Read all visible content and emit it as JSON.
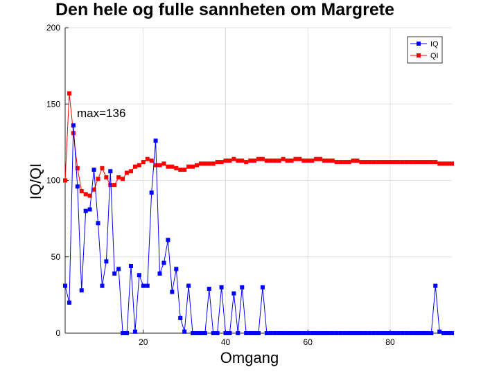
{
  "chart_data": {
    "type": "line",
    "title": "Den hele og fulle sannheten om Margrete",
    "xlabel": "Omgang",
    "ylabel": "IQ/QI",
    "xlim": [
      1,
      95
    ],
    "ylim": [
      0,
      200
    ],
    "xticks": [
      20,
      40,
      60,
      80
    ],
    "yticks": [
      0,
      50,
      100,
      150,
      200
    ],
    "grid": true,
    "legend_position": "top-right",
    "annotation": "max=136",
    "series": [
      {
        "name": "IQ",
        "color": "#0000ff",
        "values": [
          31,
          20,
          136,
          96,
          28,
          80,
          81,
          107,
          72,
          31,
          47,
          106,
          39,
          42,
          0,
          0,
          44,
          1,
          38,
          31,
          31,
          92,
          126,
          39,
          46,
          61,
          27,
          42,
          10,
          1,
          31,
          0,
          0,
          0,
          0,
          29,
          0,
          0,
          30,
          0,
          0,
          26,
          0,
          30,
          0,
          0,
          0,
          0,
          30,
          0,
          0,
          0,
          0,
          0,
          0,
          0,
          0,
          0,
          0,
          0,
          0,
          0,
          0,
          0,
          0,
          0,
          0,
          0,
          0,
          0,
          0,
          0,
          0,
          0,
          0,
          0,
          0,
          0,
          0,
          0,
          0,
          0,
          0,
          0,
          0,
          0,
          0,
          0,
          0,
          0,
          31,
          1,
          0,
          0,
          0
        ]
      },
      {
        "name": "QI",
        "color": "#ff0000",
        "values": [
          100,
          157,
          131,
          108,
          93,
          91,
          90,
          94,
          101,
          108,
          102,
          97,
          97,
          102,
          101,
          105,
          106,
          109,
          110,
          112,
          114,
          113,
          110,
          110,
          111,
          109,
          109,
          108,
          107,
          107,
          109,
          109,
          110,
          111,
          111,
          111,
          111,
          112,
          112,
          113,
          113,
          114,
          113,
          113,
          112,
          113,
          113,
          114,
          114,
          113,
          113,
          113,
          113,
          114,
          113,
          113,
          114,
          114,
          113,
          113,
          113,
          114,
          114,
          113,
          113,
          113,
          112,
          112,
          112,
          112,
          113,
          113,
          112,
          112,
          112,
          112,
          112,
          112,
          112,
          112,
          112,
          112,
          112,
          112,
          112,
          112,
          112,
          112,
          112,
          112,
          112,
          111,
          111,
          111,
          111
        ]
      }
    ]
  }
}
